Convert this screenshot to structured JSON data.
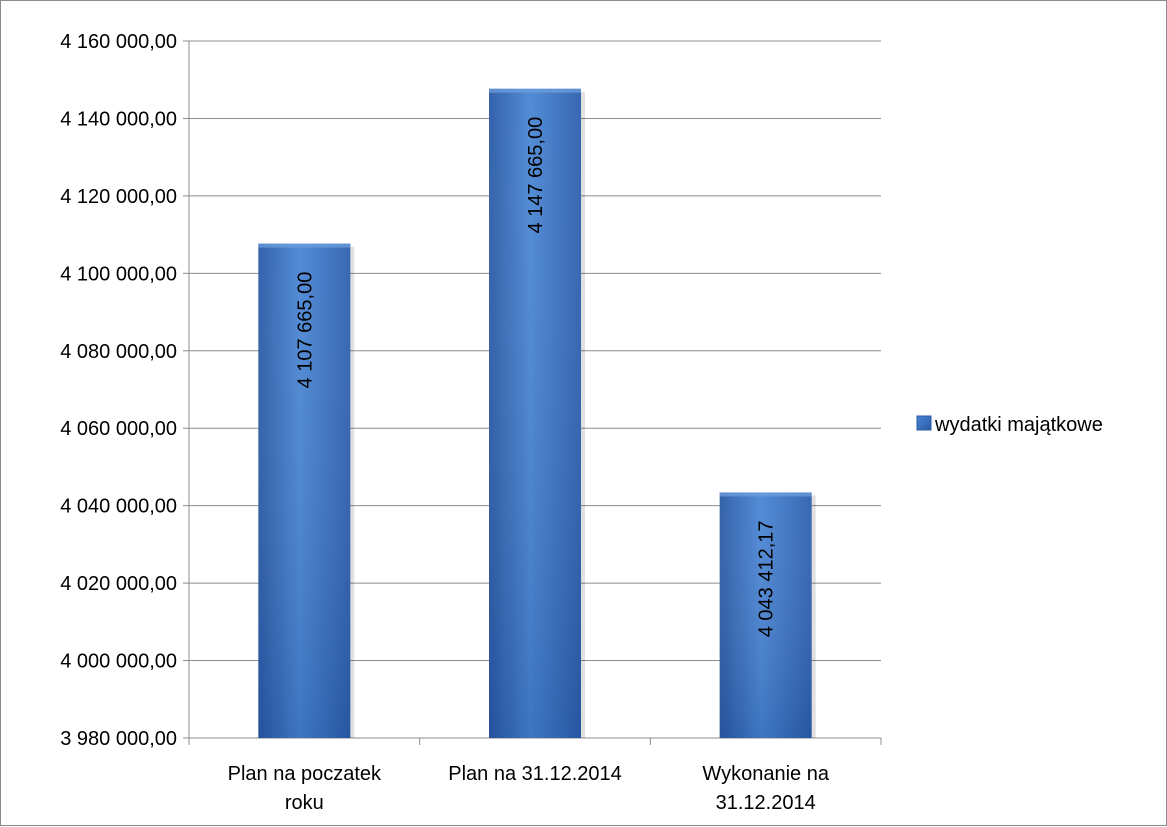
{
  "chart_data": {
    "type": "bar",
    "categories": [
      "Plan na poczatek roku",
      "Plan na 31.12.2014",
      "Wykonanie na 31.12.2014"
    ],
    "category_lines": [
      [
        "Plan na poczatek",
        "roku"
      ],
      [
        "Plan na 31.12.2014"
      ],
      [
        "Wykonanie na",
        "31.12.2014"
      ]
    ],
    "series": [
      {
        "name": "wydatki majątkowe",
        "values": [
          4107665.0,
          4147665.0,
          4043412.17
        ],
        "labels": [
          "4 107 665,00",
          "4 147 665,00",
          "4 043 412,17"
        ],
        "color": "#3a72c4"
      }
    ],
    "ylim": [
      3980000,
      4160000
    ],
    "yticks": [
      3980000,
      4000000,
      4020000,
      4040000,
      4060000,
      4080000,
      4100000,
      4120000,
      4140000,
      4160000
    ],
    "ytick_labels": [
      "3 980 000,00",
      "4 000 000,00",
      "4 020 000,00",
      "4 040 000,00",
      "4 060 000,00",
      "4 080 000,00",
      "4 100 000,00",
      "4 120 000,00",
      "4 140 000,00",
      "4 160 000,00"
    ],
    "grid": true,
    "legend_position": "right",
    "title": "",
    "xlabel": "",
    "ylabel": ""
  }
}
